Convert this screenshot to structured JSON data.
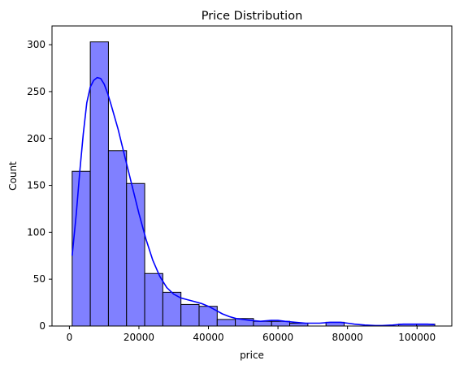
{
  "chart_data": {
    "type": "bar",
    "title": "Price Distribution",
    "xlabel": "price",
    "ylabel": "Count",
    "xlim": [
      -5000,
      110000
    ],
    "ylim": [
      0,
      320
    ],
    "xticks": [
      0,
      20000,
      40000,
      60000,
      80000,
      100000
    ],
    "yticks": [
      0,
      50,
      100,
      150,
      200,
      250,
      300
    ],
    "grid": false,
    "bins": [
      {
        "x0": 800,
        "x1": 6015,
        "count": 165
      },
      {
        "x0": 6015,
        "x1": 11230,
        "count": 303
      },
      {
        "x0": 11230,
        "x1": 16445,
        "count": 187
      },
      {
        "x0": 16445,
        "x1": 21660,
        "count": 152
      },
      {
        "x0": 21660,
        "x1": 26875,
        "count": 56
      },
      {
        "x0": 26875,
        "x1": 32090,
        "count": 36
      },
      {
        "x0": 32090,
        "x1": 37305,
        "count": 23
      },
      {
        "x0": 37305,
        "x1": 42520,
        "count": 21
      },
      {
        "x0": 42520,
        "x1": 47735,
        "count": 7
      },
      {
        "x0": 47735,
        "x1": 52950,
        "count": 8
      },
      {
        "x0": 52950,
        "x1": 58165,
        "count": 5
      },
      {
        "x0": 58165,
        "x1": 63380,
        "count": 5
      },
      {
        "x0": 63380,
        "x1": 68595,
        "count": 3
      },
      {
        "x0": 68595,
        "x1": 73810,
        "count": 0
      },
      {
        "x0": 73810,
        "x1": 79025,
        "count": 4
      },
      {
        "x0": 79025,
        "x1": 84240,
        "count": 0
      },
      {
        "x0": 84240,
        "x1": 89455,
        "count": 0
      },
      {
        "x0": 89455,
        "x1": 94670,
        "count": 0
      },
      {
        "x0": 94670,
        "x1": 99885,
        "count": 2
      },
      {
        "x0": 99885,
        "x1": 105100,
        "count": 2
      }
    ],
    "kde": {
      "x": [
        800,
        2000,
        3000,
        4000,
        5000,
        6000,
        7000,
        8000,
        9000,
        10000,
        11000,
        12000,
        14000,
        16000,
        18000,
        20000,
        22000,
        24000,
        26000,
        28000,
        30000,
        32000,
        34000,
        36000,
        38000,
        40000,
        42000,
        44000,
        46000,
        48000,
        50000,
        52000,
        55000,
        58000,
        60000,
        62000,
        65000,
        68000,
        70000,
        72000,
        75000,
        78000,
        80000,
        82000,
        85000,
        88000,
        90000,
        93000,
        96000,
        100000,
        103000,
        105100
      ],
      "y": [
        75,
        120,
        165,
        205,
        238,
        255,
        262,
        265,
        264,
        258,
        248,
        236,
        210,
        180,
        150,
        120,
        93,
        70,
        53,
        41,
        34,
        30,
        28,
        26,
        24,
        21,
        17,
        13,
        10,
        8,
        7,
        6,
        5,
        6,
        6,
        5,
        4,
        3,
        3,
        3,
        4,
        4,
        3,
        2,
        1,
        0.5,
        0.5,
        1,
        2,
        2,
        2,
        1.5
      ]
    },
    "colors": {
      "bar_fill": "#8080ff",
      "bar_edge": "#000000",
      "kde_line": "#0000ff"
    }
  }
}
